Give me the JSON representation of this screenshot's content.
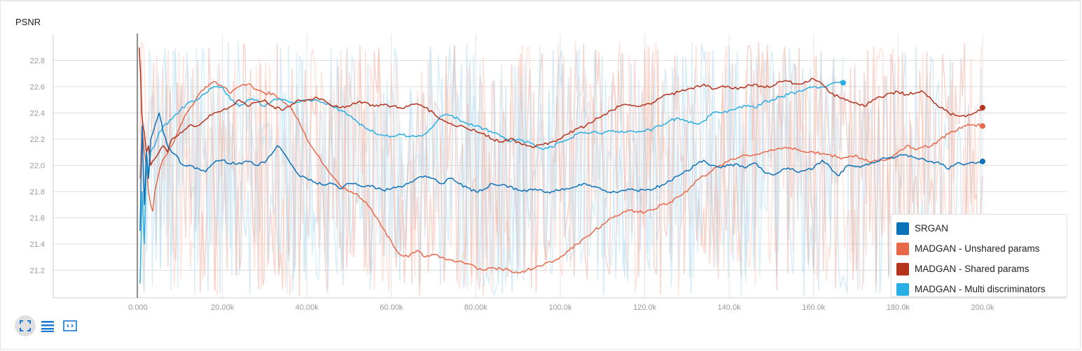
{
  "toolbar": {
    "buttons": [
      {
        "icon": "fit-to-data-icon",
        "active": true
      },
      {
        "icon": "log-scale-icon",
        "active": false
      },
      {
        "icon": "select-region-icon",
        "active": false
      }
    ],
    "icon_color": "#1976d2"
  },
  "chart_data": {
    "type": "line",
    "title": "PSNR",
    "xlabel": "",
    "ylabel": "",
    "xlim": [
      0,
      200000
    ],
    "ylim": [
      21.0,
      22.95
    ],
    "x_ticks": [
      0,
      20000,
      40000,
      60000,
      80000,
      100000,
      120000,
      140000,
      160000,
      180000,
      200000
    ],
    "x_tick_labels": [
      "0.000",
      "20.00k",
      "40.00k",
      "60.00k",
      "80.00k",
      "100.0k",
      "120.0k",
      "140.0k",
      "160.0k",
      "180.0k",
      "200.0k"
    ],
    "y_ticks": [
      21.2,
      21.4,
      21.6,
      21.8,
      22.0,
      22.2,
      22.4,
      22.6,
      22.8
    ],
    "y_tick_labels": [
      "21.2",
      "21.4",
      "21.6",
      "21.8",
      "22.0",
      "22.2",
      "22.4",
      "22.6",
      "22.8"
    ],
    "grid": true,
    "legend_position": "bottom-right",
    "series": [
      {
        "name": "SRGAN",
        "color": "#0b72b9",
        "raw_color": "#a8d2ec",
        "x": [
          500,
          1000,
          1500,
          2000,
          2500,
          3000,
          4000,
          5000,
          6000,
          7000,
          8000,
          9000,
          10000,
          12000,
          14000,
          16000,
          18000,
          20000,
          22000,
          24000,
          26000,
          28000,
          30000,
          32000,
          33000,
          34000,
          36000,
          38000,
          40000,
          42000,
          44000,
          46000,
          48000,
          50000,
          52000,
          55000,
          58000,
          60000,
          62000,
          64000,
          66000,
          68000,
          70000,
          72000,
          74000,
          76000,
          78000,
          80000,
          82000,
          84000,
          86000,
          88000,
          90000,
          92000,
          94000,
          96000,
          98000,
          100000,
          102000,
          104000,
          106000,
          108000,
          110000,
          112000,
          114000,
          116000,
          118000,
          120000,
          122000,
          124000,
          126000,
          128000,
          130000,
          132000,
          134000,
          136000,
          138000,
          140000,
          142000,
          144000,
          146000,
          148000,
          150000,
          152000,
          154000,
          156000,
          158000,
          160000,
          162000,
          164000,
          166000,
          168000,
          170000,
          172000,
          174000,
          176000,
          178000,
          180000,
          182000,
          184000,
          186000,
          188000,
          190000,
          192000,
          194000,
          196000,
          198000,
          200000
        ],
        "y": [
          21.5,
          22.3,
          21.7,
          22.1,
          21.9,
          22.2,
          22.3,
          22.4,
          22.25,
          22.15,
          22.1,
          22.08,
          22.02,
          22.0,
          21.98,
          21.95,
          22.02,
          22.04,
          22.01,
          22.02,
          22.03,
          22.0,
          22.02,
          22.1,
          22.15,
          22.12,
          22.02,
          21.93,
          21.9,
          21.87,
          21.85,
          21.86,
          21.82,
          21.86,
          21.85,
          21.84,
          21.81,
          21.82,
          21.84,
          21.86,
          21.9,
          21.92,
          21.9,
          21.86,
          21.9,
          21.86,
          21.83,
          21.8,
          21.82,
          21.86,
          21.85,
          21.84,
          21.81,
          21.8,
          21.82,
          21.8,
          21.8,
          21.81,
          21.82,
          21.84,
          21.86,
          21.84,
          21.81,
          21.79,
          21.8,
          21.82,
          21.81,
          21.81,
          21.82,
          21.85,
          21.88,
          21.92,
          21.96,
          22.0,
          22.04,
          22.0,
          21.98,
          22.0,
          22.01,
          21.98,
          22.02,
          21.96,
          21.93,
          21.95,
          21.98,
          21.95,
          21.96,
          21.98,
          22.04,
          21.98,
          21.92,
          22.0,
          21.99,
          22.0,
          22.02,
          22.05,
          22.06,
          22.07,
          22.08,
          22.06,
          22.05,
          22.03,
          22.01,
          21.97,
          22.02,
          22.01,
          22.02,
          22.03
        ]
      },
      {
        "name": "MADGAN - Unshared params",
        "color": "#e8694a",
        "raw_color": "#ffc5b5",
        "x": [
          500,
          1000,
          1500,
          2000,
          2500,
          3000,
          3500,
          4000,
          5000,
          6000,
          8000,
          10000,
          12000,
          14000,
          16000,
          18000,
          20000,
          22000,
          24000,
          26000,
          28000,
          30000,
          32000,
          34000,
          36000,
          38000,
          40000,
          42000,
          44000,
          46000,
          48000,
          50000,
          52000,
          54000,
          56000,
          58000,
          60000,
          62000,
          64000,
          66000,
          68000,
          70000,
          72000,
          74000,
          76000,
          78000,
          80000,
          82000,
          84000,
          86000,
          88000,
          90000,
          92000,
          94000,
          96000,
          98000,
          100000,
          102000,
          104000,
          106000,
          108000,
          110000,
          112000,
          114000,
          116000,
          118000,
          120000,
          122000,
          124000,
          126000,
          128000,
          130000,
          132000,
          134000,
          136000,
          138000,
          140000,
          142000,
          144000,
          146000,
          148000,
          150000,
          152000,
          154000,
          156000,
          158000,
          160000,
          162000,
          164000,
          166000,
          168000,
          170000,
          172000,
          174000,
          176000,
          178000,
          180000,
          182000,
          184000,
          186000,
          188000,
          190000,
          192000,
          194000,
          196000,
          198000,
          200000
        ],
        "y": [
          21.9,
          22.3,
          22.1,
          22.0,
          21.8,
          21.7,
          21.65,
          21.8,
          21.95,
          22.05,
          22.15,
          22.3,
          22.42,
          22.52,
          22.6,
          22.64,
          22.6,
          22.55,
          22.6,
          22.62,
          22.58,
          22.55,
          22.55,
          22.5,
          22.45,
          22.35,
          22.2,
          22.1,
          22.0,
          21.92,
          21.84,
          21.8,
          21.78,
          21.72,
          21.62,
          21.52,
          21.42,
          21.32,
          21.3,
          21.35,
          21.3,
          21.32,
          21.3,
          21.28,
          21.27,
          21.25,
          21.22,
          21.2,
          21.22,
          21.21,
          21.2,
          21.18,
          21.2,
          21.22,
          21.24,
          21.26,
          21.3,
          21.35,
          21.4,
          21.45,
          21.5,
          21.55,
          21.6,
          21.62,
          21.66,
          21.65,
          21.64,
          21.66,
          21.7,
          21.72,
          21.76,
          21.8,
          21.88,
          21.92,
          21.96,
          22.0,
          22.04,
          22.06,
          22.08,
          22.08,
          22.1,
          22.12,
          22.13,
          22.13,
          22.12,
          22.1,
          22.1,
          22.09,
          22.08,
          22.06,
          22.06,
          22.08,
          22.04,
          22.03,
          22.04,
          22.05,
          22.1,
          22.15,
          22.12,
          22.14,
          22.15,
          22.2,
          22.24,
          22.27,
          22.3,
          22.31,
          22.3
        ]
      },
      {
        "name": "MADGAN - Shared params",
        "color": "#b5321c",
        "raw_color": "#e8a898",
        "x": [
          300,
          600,
          900,
          1200,
          1500,
          2000,
          2500,
          3000,
          4000,
          5000,
          6000,
          7000,
          8000,
          10000,
          12000,
          14000,
          16000,
          18000,
          20000,
          22000,
          24000,
          26000,
          28000,
          30000,
          32000,
          34000,
          36000,
          38000,
          40000,
          42000,
          44000,
          46000,
          48000,
          50000,
          52000,
          54000,
          56000,
          58000,
          60000,
          62000,
          64000,
          66000,
          68000,
          70000,
          72000,
          74000,
          76000,
          78000,
          80000,
          82000,
          84000,
          86000,
          88000,
          90000,
          92000,
          94000,
          96000,
          98000,
          100000,
          102000,
          104000,
          106000,
          108000,
          110000,
          112000,
          114000,
          116000,
          118000,
          120000,
          122000,
          124000,
          126000,
          128000,
          130000,
          132000,
          134000,
          136000,
          138000,
          140000,
          142000,
          144000,
          146000,
          148000,
          150000,
          152000,
          154000,
          156000,
          158000,
          160000,
          162000,
          164000,
          166000,
          168000,
          170000,
          172000,
          174000,
          176000,
          178000,
          180000,
          182000,
          184000,
          186000,
          188000,
          190000,
          192000,
          194000,
          196000,
          198000,
          200000
        ],
        "y": [
          22.9,
          22.7,
          22.4,
          22.3,
          22.25,
          22.1,
          22.15,
          22.0,
          22.05,
          22.1,
          22.15,
          22.1,
          22.2,
          22.25,
          22.3,
          22.3,
          22.35,
          22.4,
          22.42,
          22.45,
          22.5,
          22.45,
          22.48,
          22.5,
          22.45,
          22.42,
          22.45,
          22.5,
          22.5,
          22.52,
          22.5,
          22.45,
          22.44,
          22.45,
          22.48,
          22.48,
          22.45,
          22.46,
          22.45,
          22.44,
          22.45,
          22.47,
          22.44,
          22.4,
          22.35,
          22.32,
          22.3,
          22.28,
          22.26,
          22.24,
          22.2,
          22.18,
          22.2,
          22.18,
          22.15,
          22.14,
          22.16,
          22.18,
          22.2,
          22.24,
          22.28,
          22.3,
          22.34,
          22.38,
          22.42,
          22.45,
          22.46,
          22.45,
          22.46,
          22.48,
          22.52,
          22.54,
          22.56,
          22.58,
          22.6,
          22.62,
          22.58,
          22.6,
          22.6,
          22.58,
          22.6,
          22.62,
          22.6,
          22.6,
          22.64,
          22.64,
          22.62,
          22.64,
          22.66,
          22.62,
          22.55,
          22.52,
          22.5,
          22.48,
          22.45,
          22.5,
          22.52,
          22.55,
          22.56,
          22.54,
          22.55,
          22.56,
          22.5,
          22.44,
          22.4,
          22.38,
          22.37,
          22.4,
          22.44
        ]
      },
      {
        "name": "MADGAN - Multi discriminators",
        "color": "#29aee4",
        "raw_color": "#bfe3f5",
        "x": [
          500,
          1000,
          1500,
          2000,
          2500,
          3000,
          4000,
          5000,
          6000,
          8000,
          10000,
          12000,
          14000,
          16000,
          18000,
          20000,
          22000,
          24000,
          26000,
          28000,
          30000,
          32000,
          34000,
          36000,
          38000,
          40000,
          42000,
          44000,
          46000,
          48000,
          50000,
          52000,
          54000,
          56000,
          58000,
          60000,
          62000,
          64000,
          66000,
          68000,
          70000,
          72000,
          74000,
          76000,
          78000,
          80000,
          82000,
          84000,
          86000,
          88000,
          90000,
          92000,
          94000,
          96000,
          98000,
          100000,
          102000,
          104000,
          106000,
          108000,
          110000,
          112000,
          114000,
          116000,
          118000,
          120000,
          122000,
          124000,
          126000,
          128000,
          130000,
          132000,
          134000,
          136000,
          138000,
          140000,
          142000,
          144000,
          146000,
          148000,
          150000,
          152000,
          154000,
          156000,
          158000,
          160000,
          162000,
          164000,
          166000,
          167000
        ],
        "y": [
          21.1,
          21.8,
          21.4,
          22.0,
          21.9,
          22.1,
          22.15,
          22.25,
          22.3,
          22.35,
          22.42,
          22.48,
          22.5,
          22.55,
          22.6,
          22.6,
          22.5,
          22.45,
          22.5,
          22.5,
          22.45,
          22.5,
          22.5,
          22.48,
          22.48,
          22.5,
          22.5,
          22.48,
          22.45,
          22.42,
          22.38,
          22.33,
          22.28,
          22.25,
          22.23,
          22.22,
          22.24,
          22.22,
          22.22,
          22.24,
          22.3,
          22.38,
          22.38,
          22.35,
          22.32,
          22.3,
          22.28,
          22.25,
          22.22,
          22.18,
          22.2,
          22.18,
          22.15,
          22.12,
          22.14,
          22.18,
          22.2,
          22.24,
          22.25,
          22.26,
          22.24,
          22.26,
          22.25,
          22.26,
          22.25,
          22.26,
          22.28,
          22.3,
          22.34,
          22.36,
          22.34,
          22.32,
          22.34,
          22.4,
          22.4,
          22.42,
          22.44,
          22.45,
          22.44,
          22.48,
          22.5,
          22.52,
          22.54,
          22.56,
          22.58,
          22.6,
          22.6,
          22.62,
          22.63,
          22.63
        ]
      }
    ]
  }
}
